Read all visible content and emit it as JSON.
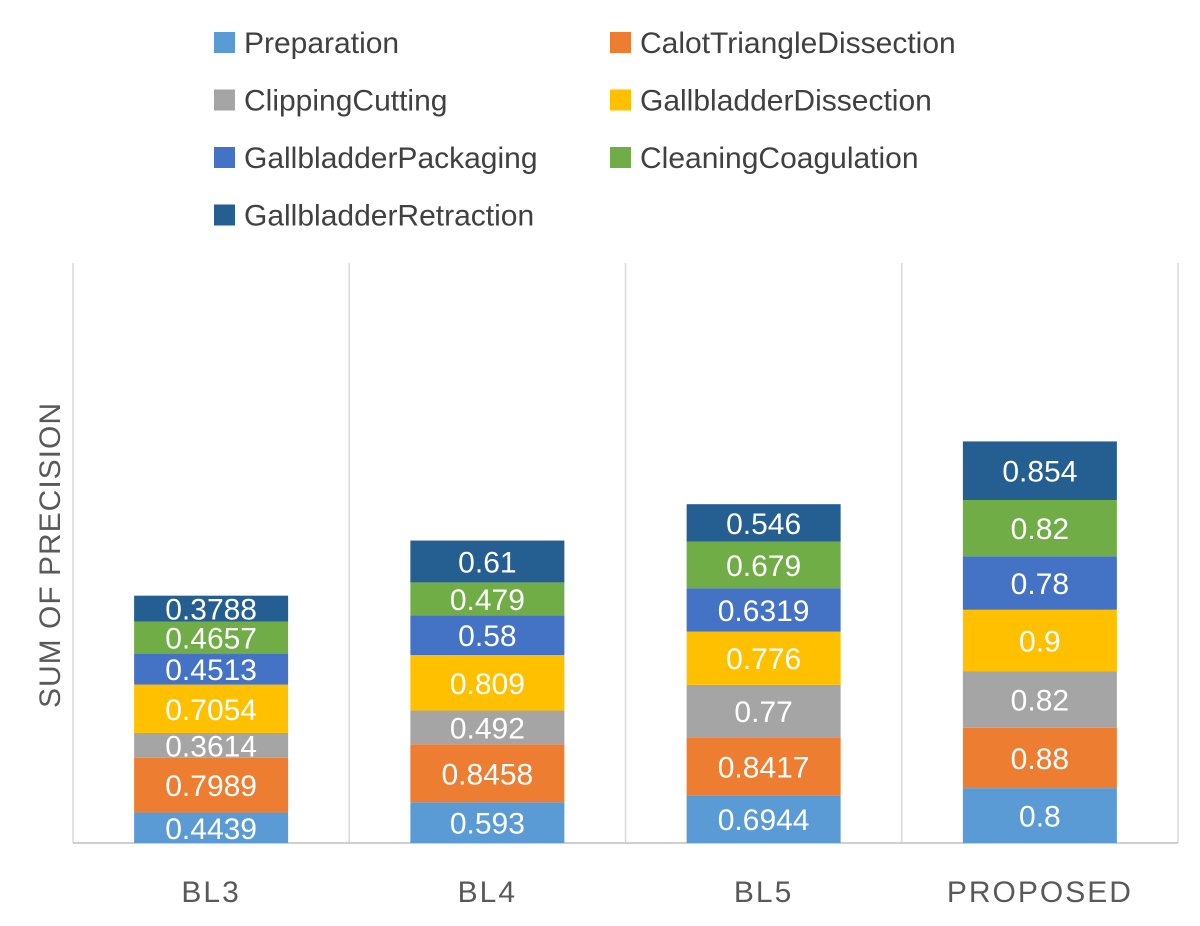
{
  "chart_data": {
    "type": "stacked-bar",
    "title": "",
    "xlabel": "",
    "ylabel": "SUM OF PRECISION",
    "categories": [
      "BL3",
      "BL4",
      "BL5",
      "PROPOSED"
    ],
    "series": [
      {
        "name": "Preparation",
        "color": "#5b9bd5",
        "values": [
          0.4439,
          0.593,
          0.6944,
          0.8
        ],
        "labels": [
          "0.4439",
          "0.593",
          "0.6944",
          "0.8"
        ]
      },
      {
        "name": "CalotTriangleDissection",
        "color": "#ed7d31",
        "values": [
          0.7989,
          0.8458,
          0.8417,
          0.88
        ],
        "labels": [
          "0.7989",
          "0.8458",
          "0.8417",
          "0.88"
        ]
      },
      {
        "name": "ClippingCutting",
        "color": "#a5a5a5",
        "values": [
          0.3614,
          0.492,
          0.77,
          0.82
        ],
        "labels": [
          "0.3614",
          "0.492",
          "0.77",
          "0.82"
        ]
      },
      {
        "name": "GallbladderDissection",
        "color": "#ffc000",
        "values": [
          0.7054,
          0.809,
          0.776,
          0.9
        ],
        "labels": [
          "0.7054",
          "0.809",
          "0.776",
          "0.9"
        ]
      },
      {
        "name": "GallbladderPackaging",
        "color": "#4472c4",
        "values": [
          0.4513,
          0.58,
          0.6319,
          0.78
        ],
        "labels": [
          "0.4513",
          "0.58",
          "0.6319",
          "0.78"
        ]
      },
      {
        "name": "CleaningCoagulation",
        "color": "#70ad47",
        "values": [
          0.4657,
          0.479,
          0.679,
          0.82
        ],
        "labels": [
          "0.4657",
          "0.479",
          "0.679",
          "0.82"
        ]
      },
      {
        "name": "GallbladderRetraction",
        "color": "#255e91",
        "values": [
          0.3788,
          0.61,
          0.546,
          0.854
        ],
        "labels": [
          "0.3788",
          "0.61",
          "0.546",
          "0.854"
        ]
      }
    ],
    "ylim": [
      0,
      7
    ],
    "grid": "vertical separators between categories",
    "legend_position": "top"
  }
}
